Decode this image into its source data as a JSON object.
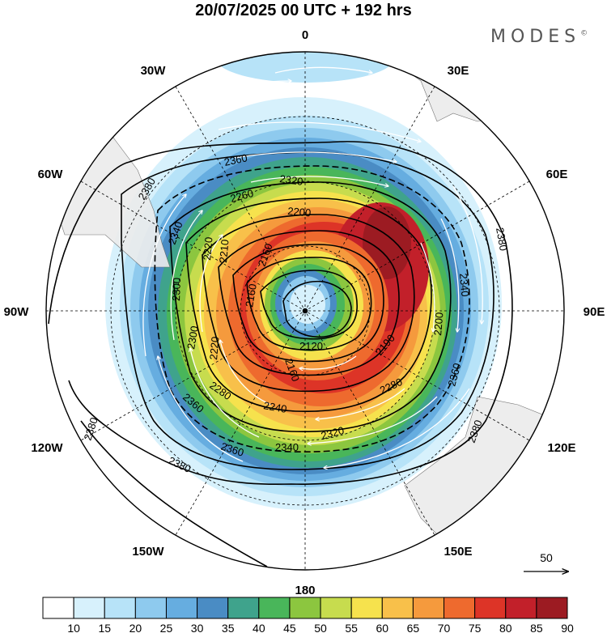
{
  "title": "20/07/2025  00 UTC  + 192 hrs",
  "brand": "MODES",
  "brand_mark": "©",
  "longitude_labels": {
    "top": "0",
    "top_right": "30E",
    "right_upper": "60E",
    "right": "90E",
    "right_lower": "120E",
    "bottom_right": "150E",
    "bottom": "180",
    "bottom_left": "150W",
    "left_lower": "120W",
    "left": "90W",
    "left_upper": "60W",
    "top_left": "30W"
  },
  "contour_labels": [
    "2120",
    "2160",
    "2160",
    "2160",
    "2190",
    "2200",
    "2210",
    "2220",
    "2240",
    "2280",
    "2280",
    "2260",
    "2200",
    "2220",
    "2300",
    "2300",
    "2320",
    "2320",
    "2340",
    "2340",
    "2340",
    "2360",
    "2360",
    "2360",
    "2360",
    "2380",
    "2380",
    "2380",
    "2380",
    "2380"
  ],
  "vector_reference": {
    "label": "50"
  },
  "colorbar": {
    "labels": [
      "10",
      "15",
      "20",
      "25",
      "30",
      "35",
      "40",
      "45",
      "50",
      "55",
      "60",
      "65",
      "70",
      "75",
      "80",
      "85",
      "90"
    ],
    "colors": [
      "#ffffff",
      "#d7f1fc",
      "#b7e3f8",
      "#8ecaee",
      "#66ade0",
      "#4a8cc4",
      "#3fa38c",
      "#49b65a",
      "#8cc63f",
      "#c7dc4e",
      "#f6e24d",
      "#f8c04a",
      "#f59a3d",
      "#ee6a2e",
      "#dd3427",
      "#c2202a",
      "#9c1b22"
    ]
  }
}
